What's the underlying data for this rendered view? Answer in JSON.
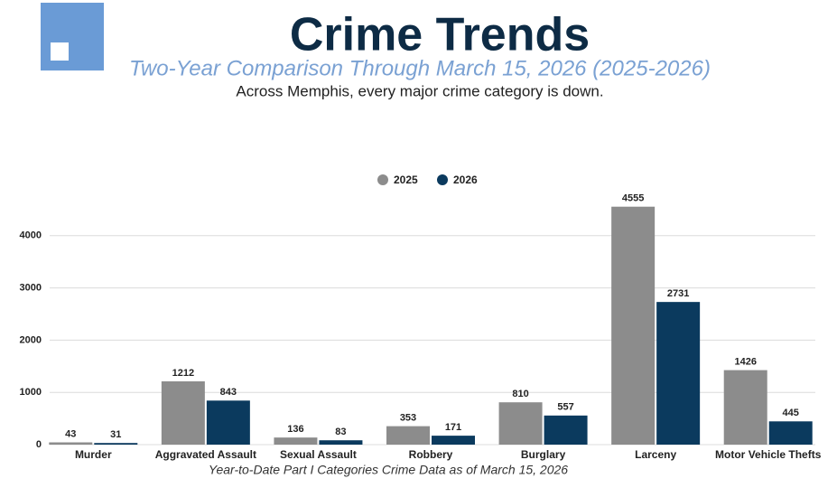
{
  "chart_data": {
    "type": "bar",
    "title": "Crime Trends",
    "subtitle": "Two-Year Comparison Through March 15, 2026 (2025-2026)",
    "description": "Across Memphis, every major crime category is down.",
    "footnote": "Year-to-Date Part I Categories Crime Data as of March 15, 2026",
    "categories": [
      "Murder",
      "Aggravated Assault",
      "Sexual Assault",
      "Robbery",
      "Burglary",
      "Larceny",
      "Motor Vehicle Thefts"
    ],
    "series": [
      {
        "name": "2025",
        "color": "#8c8c8c",
        "values": [
          43,
          1212,
          136,
          353,
          810,
          4555,
          1426
        ]
      },
      {
        "name": "2026",
        "color": "#0b3a5e",
        "values": [
          31,
          843,
          83,
          171,
          557,
          2731,
          445
        ]
      }
    ],
    "ylim": [
      0,
      5000
    ],
    "yticks": [
      0,
      1000,
      2000,
      3000,
      4000
    ],
    "grid": true,
    "legend": "top"
  }
}
